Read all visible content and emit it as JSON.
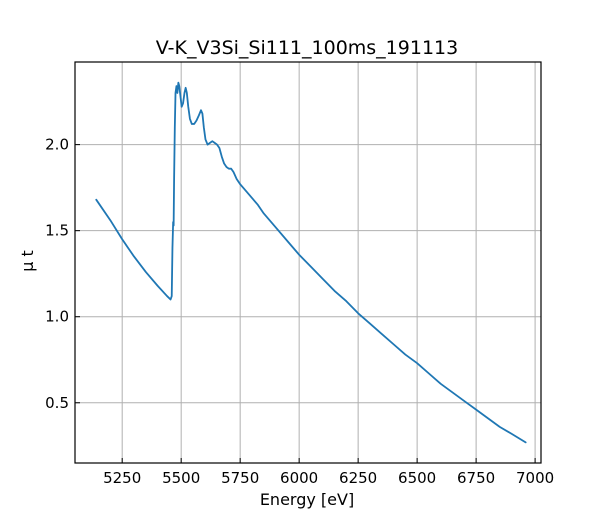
{
  "chart_data": {
    "type": "line",
    "title": "V-K_V3Si_Si111_100ms_191113",
    "xlabel": "Energy [eV]",
    "ylabel": "μ t",
    "xlim": [
      5050,
      7025
    ],
    "ylim": [
      0.15,
      2.48
    ],
    "grid": true,
    "legend": "none",
    "x_ticks": [
      5250,
      5500,
      5750,
      6000,
      6250,
      6500,
      6750,
      7000
    ],
    "y_ticks": [
      0.5,
      1.0,
      1.5,
      2.0
    ],
    "x_tick_labels": [
      "5250",
      "5500",
      "5750",
      "6000",
      "6250",
      "6500",
      "6750",
      "7000"
    ],
    "y_tick_labels": [
      "0.5",
      "1.0",
      "1.5",
      "2.0"
    ],
    "series": [
      {
        "color": "#1f77b4",
        "points": [
          [
            5140,
            1.68
          ],
          [
            5200,
            1.56
          ],
          [
            5250,
            1.45
          ],
          [
            5300,
            1.35
          ],
          [
            5350,
            1.26
          ],
          [
            5400,
            1.18
          ],
          [
            5440,
            1.12
          ],
          [
            5455,
            1.1
          ],
          [
            5460,
            1.12
          ],
          [
            5463,
            1.4
          ],
          [
            5465,
            1.5
          ],
          [
            5466,
            1.55
          ],
          [
            5468,
            1.53
          ],
          [
            5470,
            1.8
          ],
          [
            5473,
            2.1
          ],
          [
            5476,
            2.3
          ],
          [
            5480,
            2.34
          ],
          [
            5484,
            2.3
          ],
          [
            5488,
            2.36
          ],
          [
            5492,
            2.34
          ],
          [
            5497,
            2.28
          ],
          [
            5502,
            2.22
          ],
          [
            5508,
            2.24
          ],
          [
            5514,
            2.3
          ],
          [
            5519,
            2.33
          ],
          [
            5524,
            2.3
          ],
          [
            5530,
            2.22
          ],
          [
            5537,
            2.15
          ],
          [
            5545,
            2.12
          ],
          [
            5555,
            2.12
          ],
          [
            5565,
            2.14
          ],
          [
            5575,
            2.17
          ],
          [
            5584,
            2.2
          ],
          [
            5590,
            2.18
          ],
          [
            5596,
            2.1
          ],
          [
            5603,
            2.03
          ],
          [
            5612,
            2.0
          ],
          [
            5622,
            2.01
          ],
          [
            5632,
            2.02
          ],
          [
            5642,
            2.01
          ],
          [
            5652,
            2.0
          ],
          [
            5662,
            1.98
          ],
          [
            5672,
            1.93
          ],
          [
            5682,
            1.89
          ],
          [
            5692,
            1.87
          ],
          [
            5702,
            1.86
          ],
          [
            5712,
            1.86
          ],
          [
            5722,
            1.84
          ],
          [
            5735,
            1.8
          ],
          [
            5750,
            1.77
          ],
          [
            5775,
            1.73
          ],
          [
            5800,
            1.69
          ],
          [
            5825,
            1.65
          ],
          [
            5850,
            1.6
          ],
          [
            5875,
            1.56
          ],
          [
            5900,
            1.52
          ],
          [
            5950,
            1.44
          ],
          [
            6000,
            1.36
          ],
          [
            6050,
            1.29
          ],
          [
            6100,
            1.22
          ],
          [
            6150,
            1.15
          ],
          [
            6200,
            1.09
          ],
          [
            6250,
            1.02
          ],
          [
            6300,
            0.96
          ],
          [
            6350,
            0.9
          ],
          [
            6400,
            0.84
          ],
          [
            6450,
            0.78
          ],
          [
            6500,
            0.73
          ],
          [
            6550,
            0.67
          ],
          [
            6600,
            0.61
          ],
          [
            6650,
            0.56
          ],
          [
            6700,
            0.51
          ],
          [
            6750,
            0.46
          ],
          [
            6800,
            0.41
          ],
          [
            6850,
            0.36
          ],
          [
            6900,
            0.32
          ],
          [
            6960,
            0.27
          ]
        ]
      }
    ]
  }
}
